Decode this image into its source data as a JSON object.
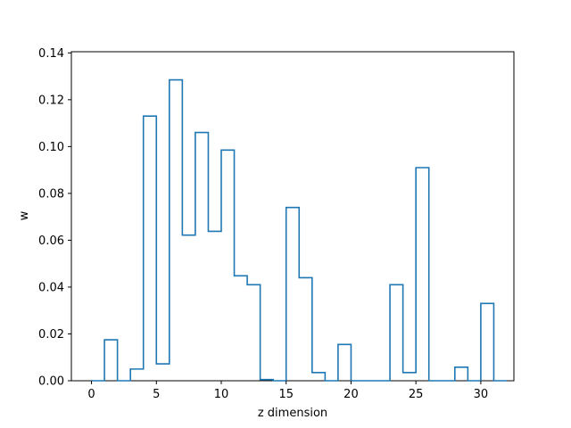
{
  "chart_data": {
    "type": "bar",
    "style": "step-histogram",
    "xlabel": "z dimension",
    "ylabel": "w",
    "xlim": [
      -1.55,
      32.55
    ],
    "ylim": [
      0,
      0.1405
    ],
    "xticks": [
      0,
      5,
      10,
      15,
      20,
      25,
      30
    ],
    "yticks": [
      0.0,
      0.02,
      0.04,
      0.06,
      0.08,
      0.1,
      0.12,
      0.14
    ],
    "ytick_labels": [
      "0.00",
      "0.02",
      "0.04",
      "0.06",
      "0.08",
      "0.10",
      "0.12",
      "0.14"
    ],
    "categories": [
      0,
      1,
      2,
      3,
      4,
      5,
      6,
      7,
      8,
      9,
      10,
      11,
      12,
      13,
      14,
      15,
      16,
      17,
      18,
      19,
      20,
      21,
      22,
      23,
      24,
      25,
      26,
      27,
      28,
      29,
      30,
      31
    ],
    "values": [
      0.0,
      0.0175,
      0.0,
      0.005,
      0.113,
      0.0072,
      0.1285,
      0.0622,
      0.106,
      0.0638,
      0.0985,
      0.0448,
      0.041,
      0.0005,
      0.0,
      0.074,
      0.044,
      0.0035,
      0.0,
      0.0155,
      0.0,
      0.0,
      0.0,
      0.041,
      0.0035,
      0.091,
      0.0,
      0.0,
      0.0058,
      0.0,
      0.033,
      0.0
    ],
    "grid": false,
    "line_color": "#1f77b4"
  }
}
